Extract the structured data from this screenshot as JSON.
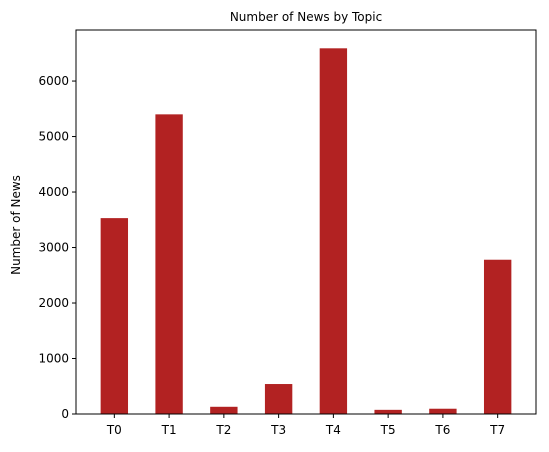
{
  "chart_data": {
    "type": "bar",
    "title": "Number of News by  Topic",
    "xlabel": "",
    "ylabel": "Number of News",
    "categories": [
      "T0",
      "T1",
      "T2",
      "T3",
      "T4",
      "T5",
      "T6",
      "T7"
    ],
    "values": [
      3530,
      5400,
      130,
      540,
      6590,
      75,
      95,
      2780
    ],
    "ylim": [
      0,
      6920
    ],
    "yticks": [
      0,
      1000,
      2000,
      3000,
      4000,
      5000,
      6000
    ],
    "grid": false,
    "legend": "none",
    "bar_color": "#b22222"
  }
}
